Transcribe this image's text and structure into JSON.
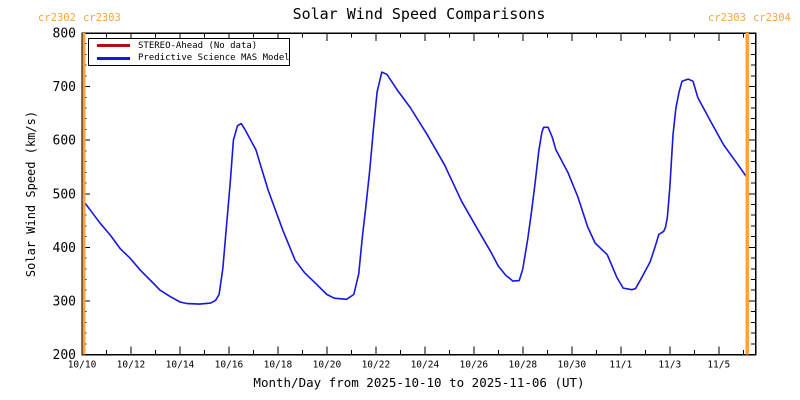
{
  "chart_data": {
    "type": "line",
    "title": "Solar Wind Speed Comparisons",
    "xlabel": "Month/Day from 2025-10-10 to 2025-11-06 (UT)",
    "ylabel": "Solar Wind Speed (km/s)",
    "grid": false,
    "x_axis": {
      "start_date": "2025-10-10",
      "range_days": [
        0,
        27.5
      ],
      "minor_step_days": 1,
      "major_ticks": [
        {
          "day": 0,
          "label": "10/10"
        },
        {
          "day": 2,
          "label": "10/12"
        },
        {
          "day": 4,
          "label": "10/14"
        },
        {
          "day": 6,
          "label": "10/16"
        },
        {
          "day": 8,
          "label": "10/18"
        },
        {
          "day": 10,
          "label": "10/20"
        },
        {
          "day": 12,
          "label": "10/22"
        },
        {
          "day": 14,
          "label": "10/24"
        },
        {
          "day": 16,
          "label": "10/26"
        },
        {
          "day": 18,
          "label": "10/28"
        },
        {
          "day": 20,
          "label": "10/30"
        },
        {
          "day": 22,
          "label": "11/1"
        },
        {
          "day": 24,
          "label": "11/3"
        },
        {
          "day": 26,
          "label": "11/5"
        }
      ]
    },
    "y_axis": {
      "range": [
        200,
        800
      ],
      "major_ticks": [
        200,
        300,
        400,
        500,
        600,
        700,
        800
      ],
      "minor_step": 20
    },
    "legend": {
      "position": "top-left",
      "entries": [
        {
          "label": "STEREO-Ahead (No data)",
          "color": "#b20f0f"
        },
        {
          "label": "Predictive Science MAS Model",
          "color": "#1717dd"
        }
      ]
    },
    "carrington_markers": {
      "color": "#f9a43f",
      "left": {
        "day": 0.09,
        "labels": [
          "cr2302",
          "cr2303"
        ]
      },
      "right": {
        "day": 27.17,
        "labels": [
          "cr2303",
          "cr2304"
        ]
      }
    },
    "series": [
      {
        "name": "STEREO-Ahead (No data)",
        "color": "#b20f0f",
        "points": []
      },
      {
        "name": "Predictive Science MAS Model",
        "color": "#1717dd",
        "points": [
          [
            0.0,
            490
          ],
          [
            0.33,
            470
          ],
          [
            0.74,
            445
          ],
          [
            1.15,
            423
          ],
          [
            1.55,
            398
          ],
          [
            1.96,
            380
          ],
          [
            2.37,
            358
          ],
          [
            2.78,
            339
          ],
          [
            3.19,
            320
          ],
          [
            3.6,
            308
          ],
          [
            4.0,
            298
          ],
          [
            4.3,
            295
          ],
          [
            4.8,
            294
          ],
          [
            5.25,
            296
          ],
          [
            5.45,
            301
          ],
          [
            5.6,
            312
          ],
          [
            5.75,
            360
          ],
          [
            5.9,
            440
          ],
          [
            6.05,
            520
          ],
          [
            6.18,
            600
          ],
          [
            6.35,
            627
          ],
          [
            6.5,
            631
          ],
          [
            6.65,
            620
          ],
          [
            7.1,
            582
          ],
          [
            7.6,
            507
          ],
          [
            8.2,
            432
          ],
          [
            8.7,
            376
          ],
          [
            9.1,
            352
          ],
          [
            9.6,
            330
          ],
          [
            10.0,
            312
          ],
          [
            10.3,
            305
          ],
          [
            10.8,
            303
          ],
          [
            11.1,
            312
          ],
          [
            11.3,
            350
          ],
          [
            11.45,
            420
          ],
          [
            11.6,
            480
          ],
          [
            11.75,
            545
          ],
          [
            11.9,
            620
          ],
          [
            12.05,
            690
          ],
          [
            12.24,
            727
          ],
          [
            12.45,
            723
          ],
          [
            12.9,
            692
          ],
          [
            13.4,
            661
          ],
          [
            14.1,
            610
          ],
          [
            14.8,
            554
          ],
          [
            15.5,
            486
          ],
          [
            16.2,
            430
          ],
          [
            16.7,
            391
          ],
          [
            17.0,
            365
          ],
          [
            17.3,
            348
          ],
          [
            17.6,
            337
          ],
          [
            17.85,
            338
          ],
          [
            18.0,
            360
          ],
          [
            18.2,
            415
          ],
          [
            18.35,
            465
          ],
          [
            18.5,
            520
          ],
          [
            18.65,
            580
          ],
          [
            18.78,
            615
          ],
          [
            18.85,
            624
          ],
          [
            19.03,
            624
          ],
          [
            19.2,
            606
          ],
          [
            19.35,
            582
          ],
          [
            19.85,
            539
          ],
          [
            20.25,
            494
          ],
          [
            20.65,
            438
          ],
          [
            20.95,
            408
          ],
          [
            21.45,
            386
          ],
          [
            21.85,
            343
          ],
          [
            22.1,
            324
          ],
          [
            22.45,
            321
          ],
          [
            22.6,
            323
          ],
          [
            22.8,
            339
          ],
          [
            23.2,
            373
          ],
          [
            23.4,
            401
          ],
          [
            23.55,
            424
          ],
          [
            23.75,
            430
          ],
          [
            23.82,
            437
          ],
          [
            23.9,
            455
          ],
          [
            24.0,
            511
          ],
          [
            24.13,
            610
          ],
          [
            24.25,
            660
          ],
          [
            24.38,
            690
          ],
          [
            24.5,
            710
          ],
          [
            24.75,
            714
          ],
          [
            24.95,
            710
          ],
          [
            25.15,
            679
          ],
          [
            25.68,
            634
          ],
          [
            26.2,
            591
          ],
          [
            26.79,
            554
          ],
          [
            27.17,
            529
          ]
        ]
      }
    ]
  }
}
